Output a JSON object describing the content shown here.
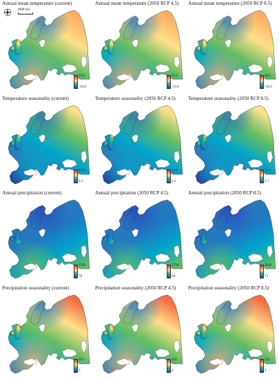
{
  "colors": {
    "scale": [
      "#2b2b9b",
      "#2c7bb6",
      "#00a6ca",
      "#66bd63",
      "#fee08b",
      "#fdae61",
      "#f46d43",
      "#d7301f"
    ],
    "sea": "#ffffff",
    "coast": "#222222"
  },
  "scale_bar": {
    "label": "1000 km"
  },
  "north_arrow": {
    "icon": "compass-rose-icon"
  },
  "panels": [
    {
      "title": "Annual mean temperature (current)",
      "legend_max": "23.9",
      "legend_min": "-16.8",
      "palette": "temp_mean",
      "level": 0.5
    },
    {
      "title": "Annual mean temperature (2050 RCP 4.5)",
      "legend_max": "25.5",
      "legend_min": "-15.6",
      "palette": "temp_mean",
      "level": 0.58
    },
    {
      "title": "Annual mean temperature (2050 RCP 8.5)",
      "legend_max": "26.5",
      "legend_min": "-10.2",
      "palette": "temp_mean",
      "level": 0.45
    },
    {
      "title": "Temperature seasonality (current)",
      "legend_max": "13.9",
      "legend_min": "2.3",
      "palette": "temp_season",
      "level": 0.5
    },
    {
      "title": "Temperature seasonality (2050 RCP 4.5)",
      "legend_max": "14.0",
      "legend_min": "2.3",
      "palette": "temp_season",
      "level": 0.55
    },
    {
      "title": "Temperature seasonality (2050 RCP 8.5)",
      "legend_max": "13.6",
      "legend_min": "2.7",
      "palette": "temp_season",
      "level": 0.42
    },
    {
      "title": "Annual precipitation (current)",
      "legend_max": "3783",
      "legend_min": "70",
      "palette": "precip",
      "level": 0.2
    },
    {
      "title": "Annual precipitation (2050 RCP 4.5)",
      "legend_max": "3750",
      "legend_min": "64",
      "palette": "precip",
      "level": 0.2
    },
    {
      "title": "Annual precipitation (2050 RCP 8.5)",
      "legend_max": "3049",
      "legend_min": "73",
      "palette": "precip",
      "level": 0.22
    },
    {
      "title": "Precipitation seasonality (current)",
      "legend_max": "112",
      "legend_min": "5",
      "palette": "precip_season",
      "level": 0.3
    },
    {
      "title": "Precipitation seasonality (2050 RCP 4.5)",
      "legend_max": "116",
      "legend_min": "4",
      "palette": "precip_season",
      "level": 0.32
    },
    {
      "title": "Precipitation seasonality (2050 RCP 8.5)",
      "legend_max": "119",
      "legend_min": "3",
      "palette": "precip_season",
      "level": 0.4
    }
  ]
}
